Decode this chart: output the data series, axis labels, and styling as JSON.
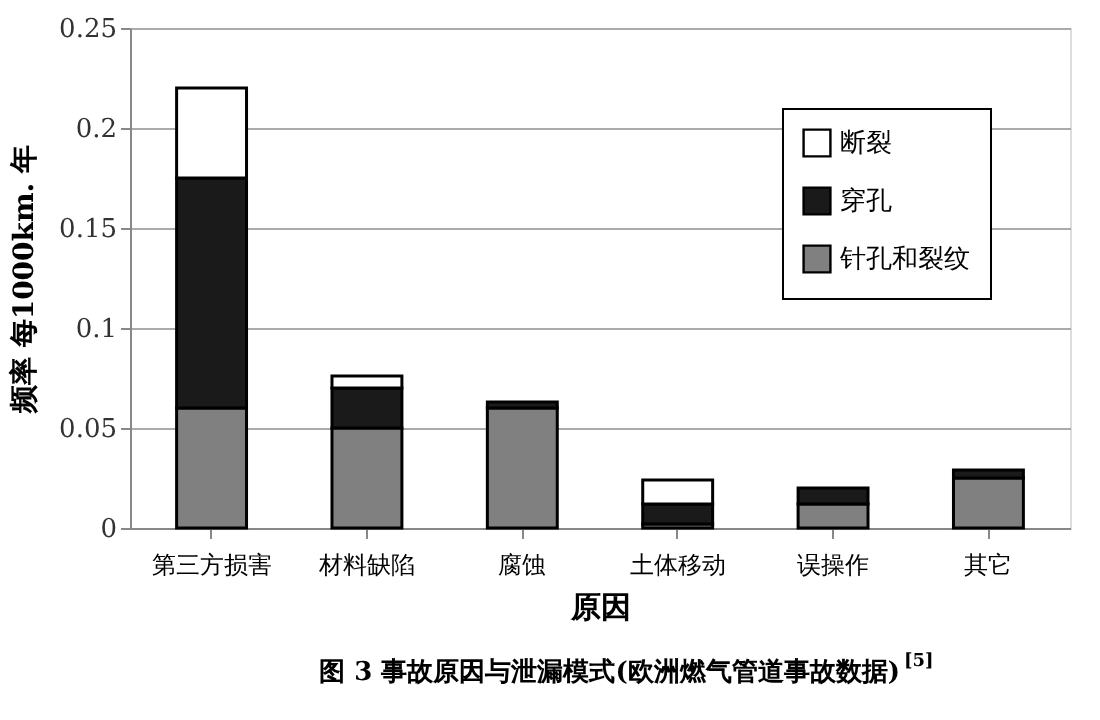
{
  "chart_data": {
    "type": "bar",
    "stacked": true,
    "categories": [
      "第三方损害",
      "材料缺陷",
      "腐蚀",
      "土体移动",
      "误操作",
      "其它"
    ],
    "series": [
      {
        "name": "针孔和裂纹",
        "color": "#808080",
        "values": [
          0.06,
          0.05,
          0.06,
          0.002,
          0.012,
          0.025
        ]
      },
      {
        "name": "穿孔",
        "color": "#1a1a1a",
        "values": [
          0.115,
          0.02,
          0.003,
          0.01,
          0.008,
          0.004
        ]
      },
      {
        "name": "断裂",
        "color": "#ffffff",
        "values": [
          0.045,
          0.006,
          0,
          0.012,
          0,
          0
        ]
      }
    ],
    "xlabel": "原因",
    "ylabel": "频率 每1000km. 年",
    "ylim": [
      0,
      0.25
    ],
    "yticks": [
      0,
      0.05,
      0.1,
      0.15,
      0.2,
      0.25
    ],
    "grid": "y",
    "legend": "top right",
    "annotations": [
      "图 3  事故原因与泄漏模式(欧洲燃气管道事故数据)$^{[5]}$"
    ]
  }
}
